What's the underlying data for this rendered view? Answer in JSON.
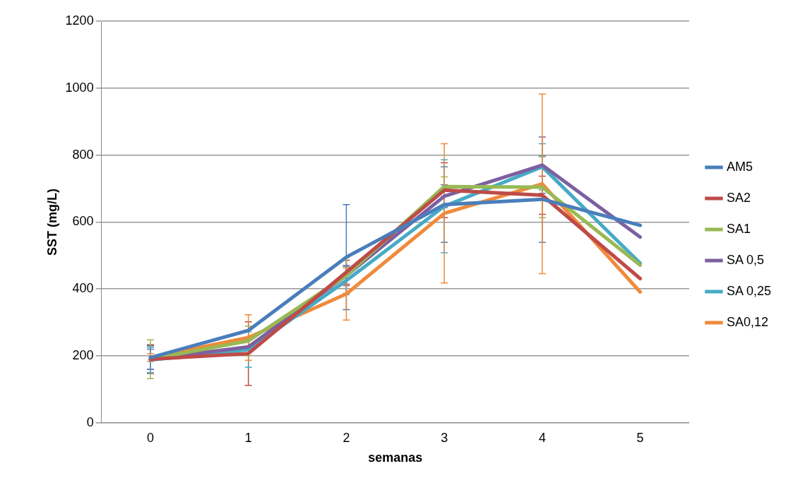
{
  "chart_data": {
    "type": "line",
    "xlabel": "semanas",
    "ylabel": "SST (mg/L)",
    "categories": [
      "0",
      "1",
      "2",
      "3",
      "4",
      "5"
    ],
    "ylim": [
      0,
      1200
    ],
    "yticks": [
      0,
      200,
      400,
      600,
      800,
      1000,
      1200
    ],
    "grid": "y",
    "legend": "right",
    "marker": "none",
    "line_style": "solid",
    "series": [
      {
        "name": "AM5",
        "color": "#4a7ebb",
        "values": [
          195,
          276,
          495,
          652,
          668,
          590
        ],
        "errors": [
          35,
          null,
          157,
          113,
          129,
          null
        ]
      },
      {
        "name": "SA2",
        "color": "#be4b48",
        "values": [
          190,
          207,
          450,
          695,
          680,
          431
        ],
        "errors": [
          43,
          95,
          36,
          82,
          57,
          null
        ]
      },
      {
        "name": "SA1",
        "color": "#98b954",
        "values": [
          190,
          245,
          440,
          706,
          704,
          471
        ],
        "errors": [
          58,
          44,
          53,
          29,
          91,
          null
        ]
      },
      {
        "name": "SA 0,5",
        "color": "#7d60a0",
        "values": [
          190,
          227,
          440,
          677,
          770,
          555
        ],
        "errors": [
          30,
          null,
          30,
          34,
          84,
          null
        ]
      },
      {
        "name": "SA 0,25",
        "color": "#46aac5",
        "values": [
          188,
          219,
          425,
          647,
          765,
          477
        ],
        "errors": [
          38,
          53,
          42,
          139,
          69,
          null
        ]
      },
      {
        "name": "SA0,12",
        "color": "#f08a3a",
        "values": [
          195,
          255,
          385,
          626,
          714,
          391
        ],
        "errors": [
          12,
          68,
          78,
          208,
          268,
          null
        ]
      }
    ]
  }
}
